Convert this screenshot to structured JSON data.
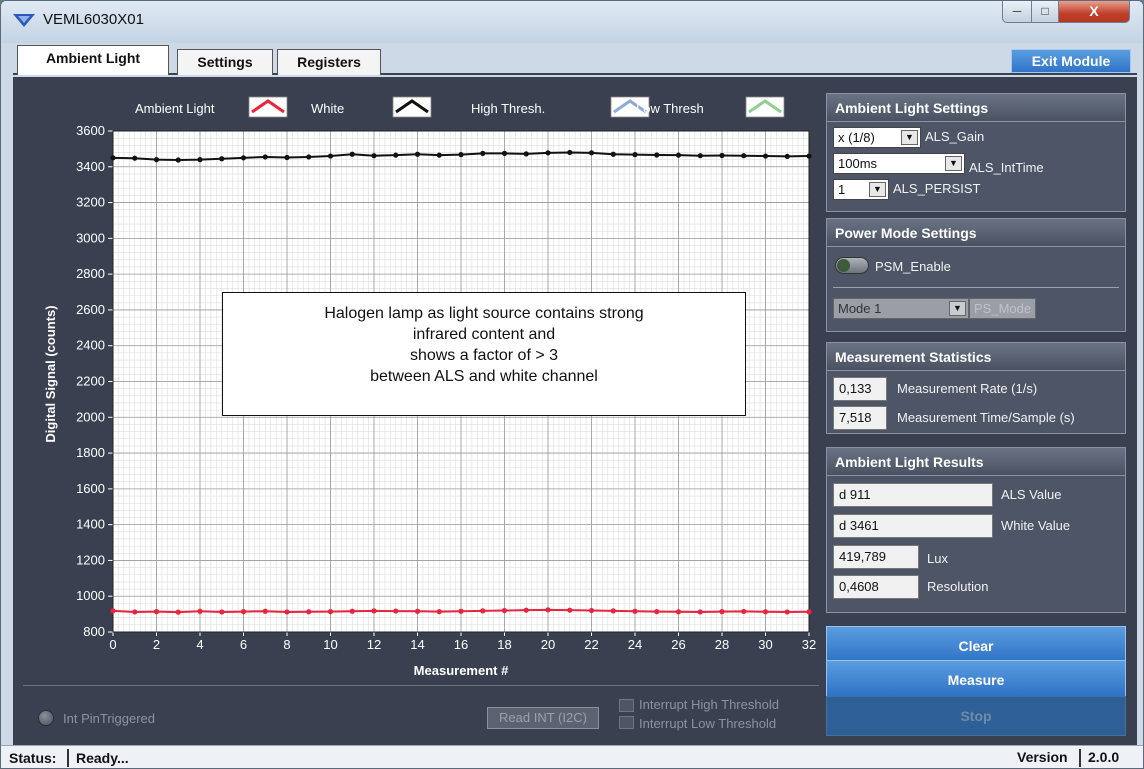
{
  "window": {
    "title": "VEML6030X01",
    "close_glyph": "X"
  },
  "tabs": [
    {
      "label": "Ambient Light",
      "active": true
    },
    {
      "label": "Settings",
      "active": false
    },
    {
      "label": "Registers",
      "active": false
    }
  ],
  "exit_label": "Exit Module",
  "chart_data": {
    "type": "line",
    "ylabel": "Digital Signal (counts)",
    "xlabel": "Measurement #",
    "xlim": [
      0,
      32
    ],
    "ylim": [
      800,
      3600
    ],
    "x_ticks": [
      0,
      2,
      4,
      6,
      8,
      10,
      12,
      14,
      16,
      18,
      20,
      22,
      24,
      26,
      28,
      30,
      32
    ],
    "y_ticks": [
      800,
      1000,
      1200,
      1400,
      1600,
      1800,
      2000,
      2200,
      2400,
      2600,
      2800,
      3000,
      3200,
      3400,
      3600
    ],
    "grid": true,
    "x": [
      0,
      1,
      2,
      3,
      4,
      5,
      6,
      7,
      8,
      9,
      10,
      11,
      12,
      13,
      14,
      15,
      16,
      17,
      18,
      19,
      20,
      21,
      22,
      23,
      24,
      25,
      26,
      27,
      28,
      29,
      30,
      31,
      32
    ],
    "legend": [
      {
        "name": "Ambient Light",
        "color": "#e8253c"
      },
      {
        "name": "White",
        "color": "#111111"
      },
      {
        "name": "High Thresh.",
        "color": "#8ea8d8"
      },
      {
        "name": "Low Thresh",
        "color": "#8fd08f"
      }
    ],
    "series": [
      {
        "name": "Ambient Light",
        "color": "#e8253c",
        "values": [
          918,
          912,
          914,
          911,
          916,
          912,
          914,
          916,
          912,
          913,
          914,
          916,
          918,
          917,
          916,
          914,
          916,
          918,
          920,
          922,
          924,
          922,
          920,
          918,
          916,
          914,
          913,
          912,
          914,
          915,
          913,
          912,
          913
        ]
      },
      {
        "name": "White",
        "color": "#111111",
        "values": [
          3450,
          3448,
          3440,
          3438,
          3440,
          3445,
          3450,
          3455,
          3452,
          3455,
          3460,
          3470,
          3462,
          3465,
          3470,
          3465,
          3468,
          3475,
          3475,
          3472,
          3478,
          3480,
          3478,
          3470,
          3468,
          3466,
          3465,
          3462,
          3463,
          3462,
          3460,
          3458,
          3460
        ]
      }
    ]
  },
  "annotation": [
    "Halogen lamp as light source contains strong",
    "infrared content and",
    "shows a factor of > 3",
    "between ALS and white channel"
  ],
  "als_settings": {
    "title": "Ambient Light Settings",
    "gain_value": "x (1/8)",
    "gain_label": "ALS_Gain",
    "inttime_value": "100ms",
    "inttime_label": "ALS_IntTime",
    "persist_value": "1",
    "persist_label": "ALS_PERSIST"
  },
  "power_settings": {
    "title": "Power Mode Settings",
    "psm_label": "PSM_Enable",
    "mode_value": "Mode 1",
    "mode_label": "PS_Mode"
  },
  "stats": {
    "title": "Measurement Statistics",
    "rate_value": "0,133",
    "rate_label": "Measurement Rate (1/s)",
    "time_value": "7,518",
    "time_label": "Measurement Time/Sample (s)"
  },
  "results": {
    "title": "Ambient Light Results",
    "als_value": "d 911",
    "als_label": "ALS Value",
    "white_value": "d 3461",
    "white_label": "White Value",
    "lux_value": "419,789",
    "lux_label": "Lux",
    "res_value": "0,4608",
    "res_label": "Resolution"
  },
  "buttons": {
    "clear": "Clear",
    "measure": "Measure",
    "stop": "Stop"
  },
  "interrupt": {
    "pin_label": "Int PinTriggered",
    "read_label": "Read INT (I2C)",
    "high_label": "Interrupt High Threshold",
    "low_label": "Interrupt Low Threshold"
  },
  "status": {
    "label": "Status:",
    "text": "Ready...",
    "version_label": "Version",
    "version": "2.0.0"
  }
}
